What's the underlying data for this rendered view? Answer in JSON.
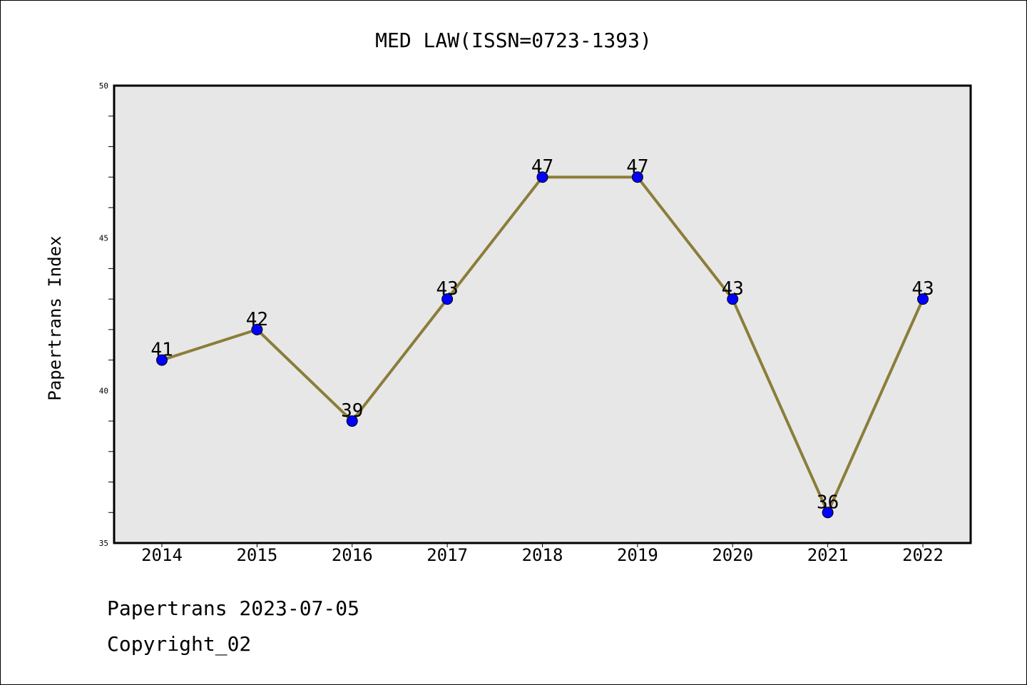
{
  "chart_data": {
    "type": "line",
    "title": "MED LAW(ISSN=0723-1393)",
    "xlabel": "",
    "ylabel": "Papertrans Index",
    "categories": [
      "2014",
      "2015",
      "2016",
      "2017",
      "2018",
      "2019",
      "2020",
      "2021",
      "2022"
    ],
    "series": [
      {
        "values": [
          41,
          42,
          39,
          43,
          47,
          47,
          43,
          36,
          43
        ]
      }
    ],
    "ylim": [
      35,
      50
    ],
    "yticks": [
      "35",
      "40",
      "45",
      "50"
    ],
    "grid": false,
    "colors": {
      "line": "#8b7d3a",
      "marker": "#0000ff",
      "plot_background": "#e7e7e7"
    }
  },
  "footer": {
    "line1": "Papertrans 2023-07-05",
    "line2": "Copyright_02"
  }
}
